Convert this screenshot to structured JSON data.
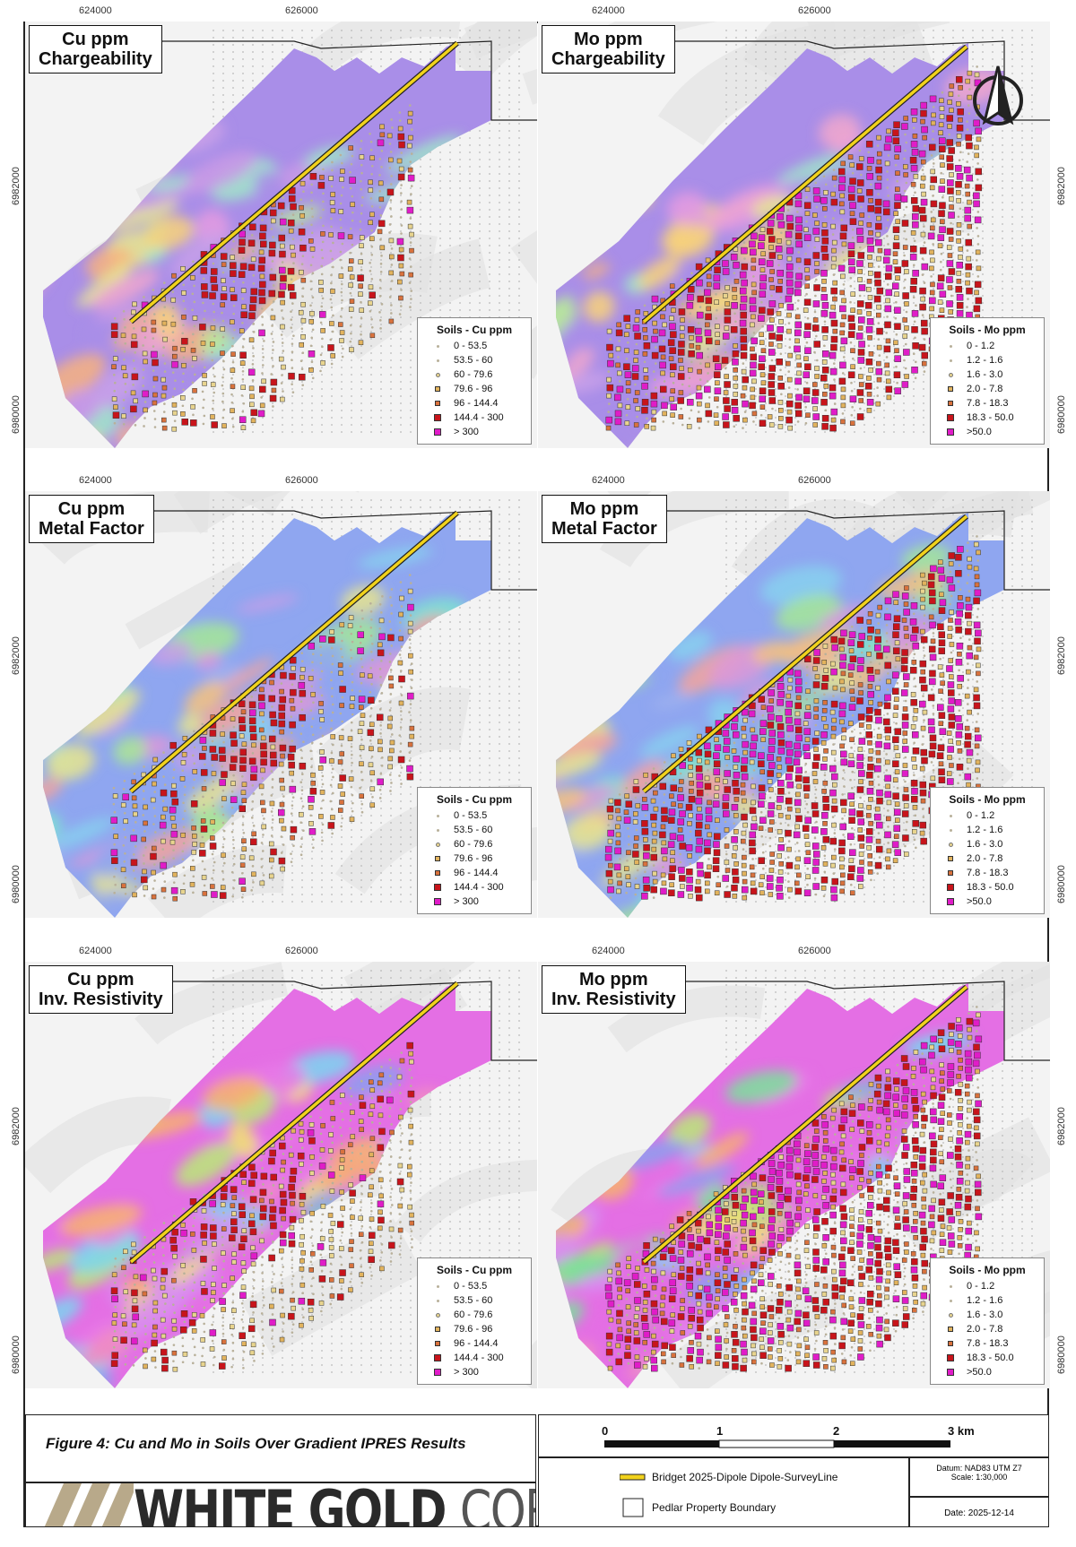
{
  "panels": [
    {
      "title1": "Cu ppm",
      "title2": "Chargeability",
      "metal": "cu",
      "background": "chargeability",
      "legend_title": "Soils - Cu ppm",
      "legend_items": [
        "0 - 53.5",
        "53.5 - 60",
        "60 - 79.6",
        "79.6 - 96",
        "96 - 144.4",
        "144.4 - 300",
        "> 300"
      ]
    },
    {
      "title1": "Mo ppm",
      "title2": "Chargeability",
      "metal": "mo",
      "background": "chargeability",
      "legend_title": "Soils - Mo ppm",
      "legend_items": [
        "0 - 1.2",
        "1.2 - 1.6",
        "1.6 - 3.0",
        "2.0 - 7.8",
        "7.8 - 18.3",
        "18.3 - 50.0",
        ">50.0"
      ]
    },
    {
      "title1": "Cu ppm",
      "title2": "Metal Factor",
      "metal": "cu",
      "background": "metalfactor",
      "legend_title": "Soils - Cu ppm",
      "legend_items": [
        "0 - 53.5",
        "53.5 - 60",
        "60 - 79.6",
        "79.6 - 96",
        "96 - 144.4",
        "144.4 - 300",
        "> 300"
      ]
    },
    {
      "title1": "Mo ppm",
      "title2": "Metal Factor",
      "metal": "mo",
      "background": "metalfactor",
      "legend_title": "Soils - Mo ppm",
      "legend_items": [
        "0 - 1.2",
        "1.2 - 1.6",
        "1.6 - 3.0",
        "2.0 - 7.8",
        "7.8 - 18.3",
        "18.3 - 50.0",
        ">50.0"
      ]
    },
    {
      "title1": "Cu ppm",
      "title2": "Inv. Resistivity",
      "metal": "cu",
      "background": "resistivity",
      "legend_title": "Soils - Cu ppm",
      "legend_items": [
        "0 - 53.5",
        "53.5 - 60",
        "60 - 79.6",
        "79.6 - 96",
        "96 - 144.4",
        "144.4 - 300",
        "> 300"
      ]
    },
    {
      "title1": "Mo ppm",
      "title2": "Inv. Resistivity",
      "metal": "mo",
      "background": "resistivity",
      "legend_title": "Soils - Mo ppm",
      "legend_items": [
        "0 - 1.2",
        "1.2 - 1.6",
        "1.6 - 3.0",
        "2.0 - 7.8",
        "7.8 - 18.3",
        "18.3 - 50.0",
        ">50.0"
      ]
    }
  ],
  "legend_colors": [
    "#f3eed9",
    "#efe6c2",
    "#e8d48e",
    "#e2b35d",
    "#d9723d",
    "#c8141b",
    "#e01cc8"
  ],
  "grid_labels": {
    "x": [
      "624000",
      "626000"
    ],
    "y": [
      "6982000",
      "6980000"
    ]
  },
  "north_arrow": "north-arrow-icon",
  "caption": "Figure 4: Cu and Mo in Soils Over Gradient IPRES Results",
  "logo": {
    "part1": "WHITE GOLD",
    "part2": "CORP"
  },
  "scale_bar": {
    "labels": [
      "0",
      "1",
      "2",
      "3 km"
    ]
  },
  "map_legend": {
    "line_label": "Bridget 2025-Dipole Dipole-SurveyLine",
    "line_color": "#f1d21c",
    "boundary_label": "Pedlar Property Boundary"
  },
  "datum": "Datum: NAD83 UTM Z7",
  "scale": "Scale: 1:30,000",
  "date": "Date: 2025-12-14"
}
